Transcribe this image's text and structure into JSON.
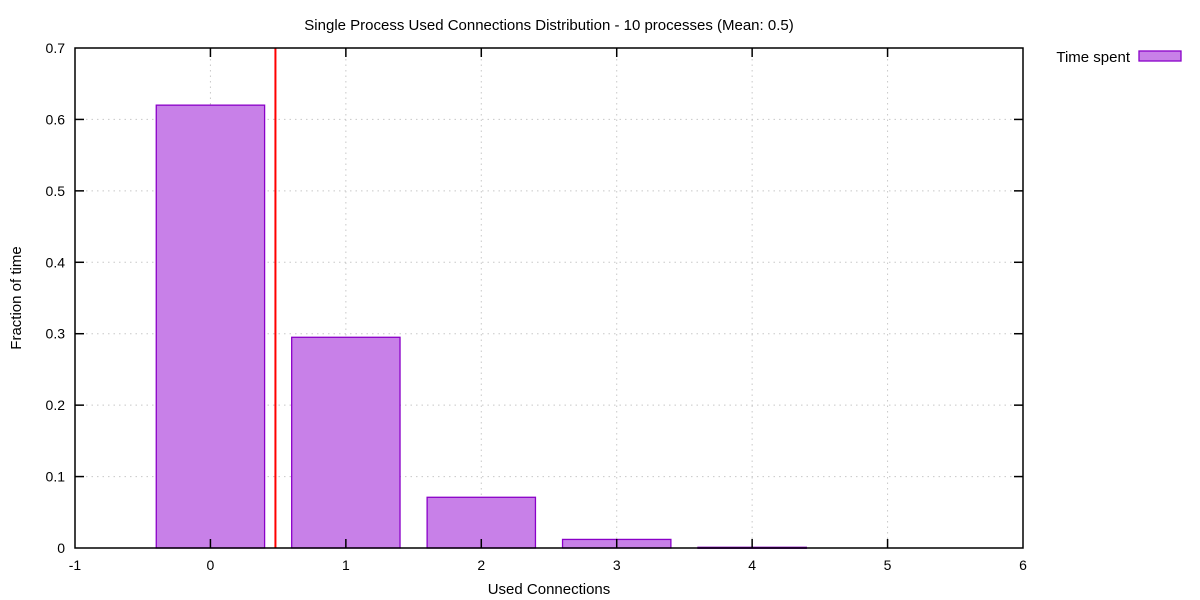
{
  "chart_data": {
    "type": "bar",
    "title": "Single Process Used Connections Distribution - 10 processes (Mean: 0.5)",
    "xlabel": "Used Connections",
    "ylabel": "Fraction of time",
    "categories": [
      0,
      1,
      2,
      3,
      4,
      5
    ],
    "series": [
      {
        "name": "Time spent",
        "values": [
          0.62,
          0.295,
          0.071,
          0.012,
          0.001,
          0.0
        ],
        "fill_color": "#c880e8",
        "border_color": "#8a00c8"
      }
    ],
    "mean_line": {
      "x": 0.48,
      "label_value": "0.5",
      "color": "#ff0000"
    },
    "xlim": [
      -1,
      6
    ],
    "ylim": [
      0,
      0.7
    ],
    "xticks": [
      -1,
      0,
      1,
      2,
      3,
      4,
      5,
      6
    ],
    "yticks": [
      0,
      0.1,
      0.2,
      0.3,
      0.4,
      0.5,
      0.6,
      0.7
    ],
    "ytick_labels": [
      "0",
      "0.1",
      "0.2",
      "0.3",
      "0.4",
      "0.5",
      "0.6",
      "0.7"
    ],
    "bar_width": 0.8,
    "grid": true,
    "legend": {
      "position": "top-right-outside",
      "entries": [
        "Time spent"
      ]
    }
  },
  "title": "Single Process Used Connections Distribution - 10 processes (Mean: 0.5)",
  "axes": {
    "xlabel": "Used Connections",
    "ylabel": "Fraction of time"
  },
  "legend": {
    "label": "Time spent"
  }
}
